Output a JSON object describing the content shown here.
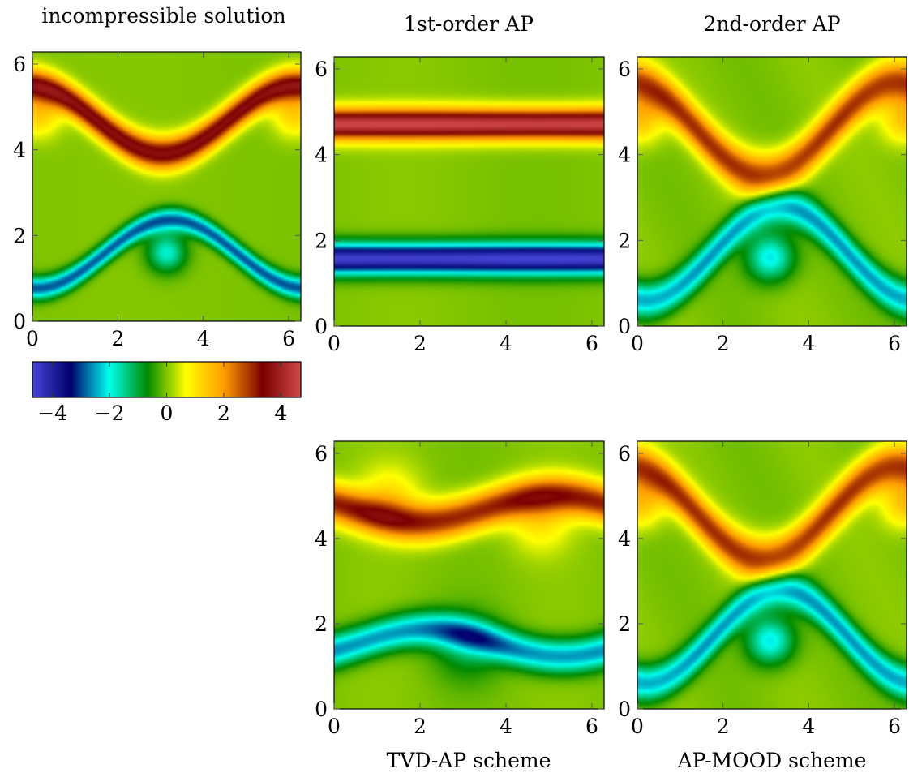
{
  "chart_data": [
    {
      "type": "heatmap",
      "title": "incompressible solution",
      "caption": "",
      "field": "shear",
      "xlim": [
        0,
        6.2832
      ],
      "ylim": [
        0,
        6.2832
      ],
      "xticks": [
        "0",
        "2",
        "4",
        "6"
      ],
      "yticks": [
        "0",
        "2",
        "4",
        "6"
      ],
      "vmin": -4.7,
      "vmax": 4.7
    },
    {
      "type": "heatmap",
      "title": "1st-order AP",
      "caption": "",
      "field": "bands",
      "xlim": [
        0,
        6.2832
      ],
      "ylim": [
        0,
        6.2832
      ],
      "xticks": [
        "0",
        "2",
        "4",
        "6"
      ],
      "yticks": [
        "0",
        "2",
        "4",
        "6"
      ],
      "vmin": -4.7,
      "vmax": 4.7
    },
    {
      "type": "heatmap",
      "title": "2nd-order AP",
      "caption": "",
      "field": "roll",
      "xlim": [
        0,
        6.2832
      ],
      "ylim": [
        0,
        6.2832
      ],
      "xticks": [
        "0",
        "2",
        "4",
        "6"
      ],
      "yticks": [
        "0",
        "2",
        "4",
        "6"
      ],
      "vmin": -4.7,
      "vmax": 4.7
    },
    {
      "type": "heatmap",
      "title": "",
      "caption": "TVD-AP scheme",
      "field": "wavy",
      "xlim": [
        0,
        6.2832
      ],
      "ylim": [
        0,
        6.2832
      ],
      "xticks": [
        "0",
        "2",
        "4",
        "6"
      ],
      "yticks": [
        "0",
        "2",
        "4",
        "6"
      ],
      "vmin": -4.7,
      "vmax": 4.7
    },
    {
      "type": "heatmap",
      "title": "",
      "caption": "AP-MOOD scheme",
      "field": "roll",
      "xlim": [
        0,
        6.2832
      ],
      "ylim": [
        0,
        6.2832
      ],
      "xticks": [
        "0",
        "2",
        "4",
        "6"
      ],
      "yticks": [
        "0",
        "2",
        "4",
        "6"
      ],
      "vmin": -4.7,
      "vmax": 4.7
    }
  ],
  "colorbar": {
    "ticks": [
      "−4",
      "−2",
      "0",
      "2",
      "4"
    ],
    "tick_values": [
      -4,
      -2,
      0,
      2,
      4
    ],
    "vmin": -4.7,
    "vmax": 4.7,
    "colors": [
      "#4646d8",
      "#00006e",
      "#00ffee",
      "#008a00",
      "#ffff00",
      "#ff9b00",
      "#7a0000",
      "#d24848"
    ]
  }
}
